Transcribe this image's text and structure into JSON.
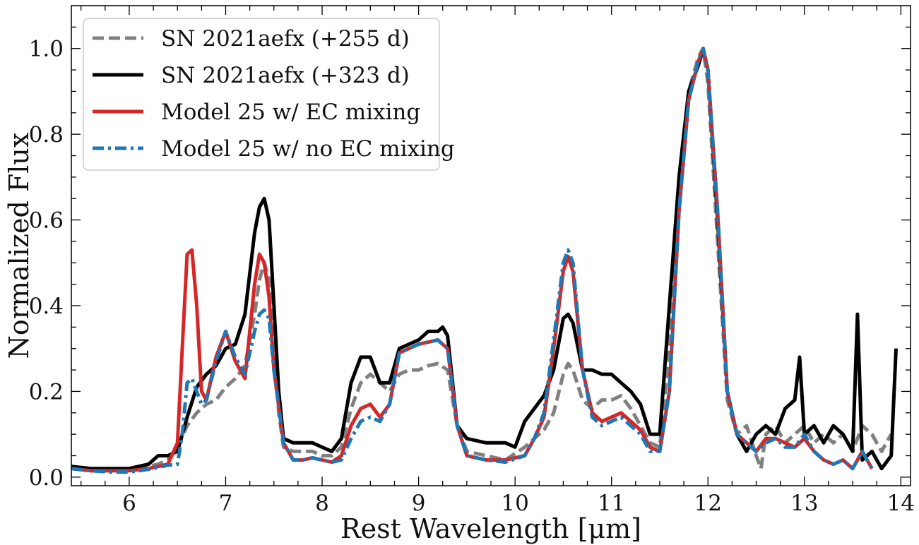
{
  "chart_data": {
    "type": "line",
    "title": "",
    "xlabel": "Rest Wavelength [μm]",
    "ylabel": "Normalized Flux",
    "xlim": [
      5.4,
      14.1
    ],
    "ylim": [
      -0.02,
      1.1
    ],
    "xticks": [
      6,
      7,
      8,
      9,
      10,
      11,
      12,
      13,
      14
    ],
    "yticks": [
      0.0,
      0.2,
      0.4,
      0.6,
      0.8,
      1.0
    ],
    "xtick_labels": [
      "6",
      "7",
      "8",
      "9",
      "10",
      "11",
      "12",
      "13",
      "14"
    ],
    "ytick_labels": [
      "0.0",
      "0.2",
      "0.4",
      "0.6",
      "0.8",
      "1.0"
    ],
    "grid": false,
    "legend_position": "top-left",
    "series": [
      {
        "name": "SN 2021aefx (+255 d)",
        "color": "#808080",
        "style": "dashed",
        "x": [
          5.4,
          5.6,
          5.8,
          6.0,
          6.2,
          6.3,
          6.4,
          6.5,
          6.6,
          6.7,
          6.8,
          6.9,
          7.0,
          7.1,
          7.2,
          7.3,
          7.35,
          7.4,
          7.45,
          7.5,
          7.55,
          7.6,
          7.7,
          7.8,
          7.9,
          8.0,
          8.1,
          8.2,
          8.3,
          8.4,
          8.5,
          8.6,
          8.7,
          8.8,
          8.9,
          9.0,
          9.1,
          9.2,
          9.3,
          9.4,
          9.5,
          9.7,
          9.9,
          10.1,
          10.2,
          10.3,
          10.4,
          10.5,
          10.55,
          10.6,
          10.7,
          10.8,
          10.9,
          11.0,
          11.1,
          11.2,
          11.3,
          11.4,
          11.5,
          11.6,
          11.7,
          11.8,
          11.9,
          11.95,
          12.0,
          12.1,
          12.2,
          12.3,
          12.4,
          12.5,
          12.55,
          12.6,
          12.7,
          12.8,
          12.9,
          13.0,
          13.1,
          13.2,
          13.3,
          13.4,
          13.5,
          13.6,
          13.7,
          13.8,
          13.9
        ],
        "y": [
          0.02,
          0.015,
          0.015,
          0.02,
          0.025,
          0.03,
          0.04,
          0.07,
          0.12,
          0.15,
          0.17,
          0.18,
          0.21,
          0.23,
          0.26,
          0.38,
          0.46,
          0.5,
          0.46,
          0.32,
          0.15,
          0.07,
          0.06,
          0.06,
          0.06,
          0.05,
          0.05,
          0.07,
          0.16,
          0.22,
          0.24,
          0.22,
          0.2,
          0.24,
          0.25,
          0.25,
          0.26,
          0.265,
          0.25,
          0.12,
          0.06,
          0.05,
          0.04,
          0.07,
          0.09,
          0.11,
          0.15,
          0.24,
          0.265,
          0.25,
          0.18,
          0.16,
          0.18,
          0.18,
          0.19,
          0.16,
          0.12,
          0.08,
          0.07,
          0.3,
          0.7,
          0.9,
          0.98,
          1.0,
          0.92,
          0.55,
          0.18,
          0.1,
          0.12,
          0.05,
          0.02,
          0.1,
          0.12,
          0.08,
          0.1,
          0.12,
          0.08,
          0.1,
          0.08,
          0.1,
          0.06,
          0.12,
          0.1,
          0.06,
          0.1
        ]
      },
      {
        "name": "SN 2021aefx (+323 d)",
        "color": "#000000",
        "style": "solid",
        "x": [
          5.4,
          5.6,
          5.8,
          6.0,
          6.2,
          6.3,
          6.4,
          6.5,
          6.6,
          6.7,
          6.8,
          6.9,
          7.0,
          7.1,
          7.2,
          7.3,
          7.35,
          7.4,
          7.45,
          7.5,
          7.55,
          7.6,
          7.7,
          7.8,
          7.9,
          8.0,
          8.1,
          8.2,
          8.3,
          8.4,
          8.5,
          8.6,
          8.7,
          8.8,
          8.9,
          9.0,
          9.1,
          9.2,
          9.25,
          9.3,
          9.4,
          9.5,
          9.7,
          9.9,
          10.0,
          10.1,
          10.2,
          10.3,
          10.4,
          10.5,
          10.55,
          10.6,
          10.7,
          10.8,
          10.9,
          11.0,
          11.1,
          11.2,
          11.3,
          11.4,
          11.5,
          11.6,
          11.7,
          11.8,
          11.9,
          11.95,
          12.0,
          12.1,
          12.2,
          12.3,
          12.4,
          12.5,
          12.6,
          12.7,
          12.8,
          12.9,
          12.95,
          13.0,
          13.1,
          13.2,
          13.3,
          13.4,
          13.5,
          13.55,
          13.6,
          13.7,
          13.8,
          13.9,
          13.95
        ],
        "y": [
          0.025,
          0.02,
          0.02,
          0.02,
          0.03,
          0.05,
          0.05,
          0.06,
          0.14,
          0.21,
          0.24,
          0.26,
          0.3,
          0.31,
          0.38,
          0.57,
          0.63,
          0.65,
          0.6,
          0.4,
          0.2,
          0.09,
          0.08,
          0.08,
          0.08,
          0.07,
          0.06,
          0.09,
          0.22,
          0.28,
          0.28,
          0.22,
          0.22,
          0.3,
          0.31,
          0.32,
          0.34,
          0.34,
          0.35,
          0.33,
          0.12,
          0.09,
          0.08,
          0.08,
          0.07,
          0.13,
          0.16,
          0.19,
          0.25,
          0.37,
          0.38,
          0.36,
          0.25,
          0.25,
          0.24,
          0.24,
          0.22,
          0.2,
          0.17,
          0.1,
          0.1,
          0.4,
          0.7,
          0.9,
          0.96,
          1.0,
          0.95,
          0.6,
          0.2,
          0.1,
          0.06,
          0.1,
          0.12,
          0.1,
          0.16,
          0.18,
          0.28,
          0.1,
          0.12,
          0.08,
          0.12,
          0.1,
          0.06,
          0.38,
          0.04,
          0.06,
          0.02,
          0.05,
          0.3
        ]
      },
      {
        "name": "Model 25 w/ EC mixing",
        "color": "#d62728",
        "style": "solid",
        "x": [
          5.4,
          5.6,
          5.8,
          6.0,
          6.2,
          6.4,
          6.5,
          6.55,
          6.6,
          6.65,
          6.7,
          6.75,
          6.8,
          6.9,
          7.0,
          7.1,
          7.2,
          7.3,
          7.35,
          7.4,
          7.45,
          7.5,
          7.6,
          7.7,
          7.8,
          7.9,
          8.0,
          8.1,
          8.2,
          8.3,
          8.4,
          8.5,
          8.6,
          8.7,
          8.8,
          8.9,
          9.0,
          9.1,
          9.2,
          9.3,
          9.4,
          9.5,
          9.7,
          9.9,
          10.1,
          10.2,
          10.3,
          10.4,
          10.5,
          10.55,
          10.6,
          10.7,
          10.8,
          10.9,
          11.0,
          11.1,
          11.2,
          11.3,
          11.4,
          11.5,
          11.6,
          11.7,
          11.8,
          11.9,
          11.95,
          12.0,
          12.1,
          12.2,
          12.3,
          12.4,
          12.5,
          12.6,
          12.7,
          12.8,
          12.9,
          13.0,
          13.1,
          13.2,
          13.3,
          13.4,
          13.5,
          13.6,
          13.7
        ],
        "y": [
          0.02,
          0.015,
          0.015,
          0.015,
          0.02,
          0.03,
          0.08,
          0.3,
          0.52,
          0.53,
          0.4,
          0.2,
          0.18,
          0.28,
          0.34,
          0.27,
          0.23,
          0.45,
          0.52,
          0.5,
          0.42,
          0.25,
          0.08,
          0.04,
          0.04,
          0.045,
          0.04,
          0.035,
          0.05,
          0.12,
          0.16,
          0.17,
          0.14,
          0.17,
          0.29,
          0.3,
          0.31,
          0.315,
          0.32,
          0.3,
          0.12,
          0.05,
          0.04,
          0.04,
          0.05,
          0.09,
          0.14,
          0.3,
          0.48,
          0.515,
          0.48,
          0.25,
          0.15,
          0.13,
          0.14,
          0.15,
          0.13,
          0.11,
          0.07,
          0.06,
          0.2,
          0.62,
          0.88,
          0.97,
          1.0,
          0.95,
          0.62,
          0.2,
          0.1,
          0.08,
          0.06,
          0.09,
          0.09,
          0.08,
          0.07,
          0.09,
          0.06,
          0.04,
          0.03,
          0.04,
          0.02,
          0.06,
          0.02
        ]
      },
      {
        "name": "Model 25 w/ no EC mixing",
        "color": "#1f77b4",
        "style": "dashdot",
        "x": [
          5.4,
          5.6,
          5.8,
          6.0,
          6.2,
          6.4,
          6.5,
          6.55,
          6.6,
          6.65,
          6.7,
          6.75,
          6.8,
          6.9,
          7.0,
          7.1,
          7.2,
          7.3,
          7.35,
          7.4,
          7.45,
          7.5,
          7.6,
          7.7,
          7.8,
          7.9,
          8.0,
          8.1,
          8.2,
          8.3,
          8.4,
          8.5,
          8.6,
          8.7,
          8.8,
          8.9,
          9.0,
          9.1,
          9.2,
          9.3,
          9.4,
          9.5,
          9.7,
          9.9,
          10.1,
          10.2,
          10.3,
          10.4,
          10.5,
          10.55,
          10.6,
          10.7,
          10.8,
          10.9,
          11.0,
          11.1,
          11.2,
          11.3,
          11.4,
          11.5,
          11.6,
          11.7,
          11.8,
          11.9,
          11.95,
          12.0,
          12.1,
          12.2,
          12.3,
          12.4,
          12.5,
          12.6,
          12.7,
          12.8,
          12.9,
          13.0,
          13.1,
          13.2,
          13.3,
          13.4,
          13.5,
          13.6,
          13.7
        ],
        "y": [
          0.02,
          0.015,
          0.012,
          0.012,
          0.018,
          0.028,
          0.03,
          0.1,
          0.22,
          0.23,
          0.2,
          0.17,
          0.18,
          0.27,
          0.34,
          0.28,
          0.24,
          0.34,
          0.38,
          0.39,
          0.37,
          0.25,
          0.08,
          0.04,
          0.04,
          0.045,
          0.04,
          0.035,
          0.04,
          0.09,
          0.13,
          0.14,
          0.13,
          0.17,
          0.29,
          0.3,
          0.31,
          0.315,
          0.32,
          0.3,
          0.12,
          0.05,
          0.04,
          0.035,
          0.05,
          0.09,
          0.15,
          0.32,
          0.5,
          0.53,
          0.5,
          0.25,
          0.14,
          0.12,
          0.13,
          0.14,
          0.12,
          0.1,
          0.06,
          0.06,
          0.2,
          0.62,
          0.88,
          0.97,
          1.0,
          0.95,
          0.62,
          0.2,
          0.1,
          0.08,
          0.06,
          0.08,
          0.09,
          0.07,
          0.07,
          0.1,
          0.06,
          0.04,
          0.03,
          0.04,
          0.02,
          0.06,
          0.02
        ]
      }
    ]
  }
}
